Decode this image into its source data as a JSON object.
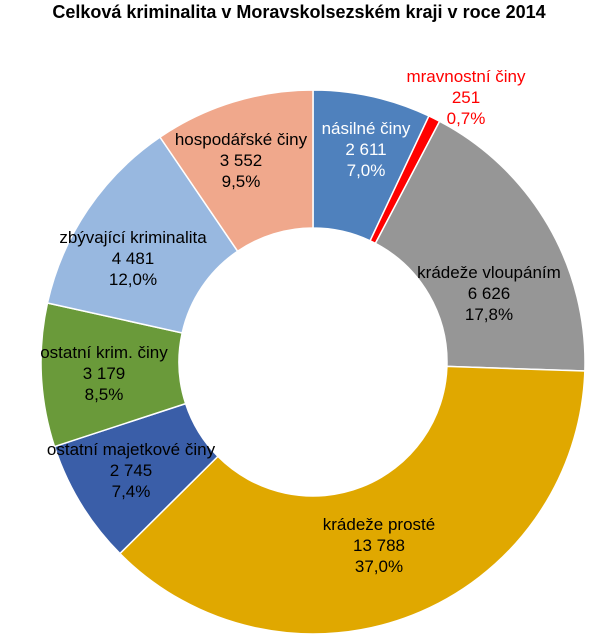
{
  "chart_data": {
    "type": "pie",
    "title": "Celková kriminalita v Moravskolsezském kraji v roce 2014",
    "slices": [
      {
        "label": "násilné činy",
        "value": "2 611",
        "percent": "7,0%",
        "share": 7.0,
        "color": "#4f81bd"
      },
      {
        "label": "mravnostní činy",
        "value": "251",
        "percent": "0,7%",
        "share": 0.7,
        "color": "#ff0000"
      },
      {
        "label": "krádeže vloupáním",
        "value": "6 626",
        "percent": "17,8%",
        "share": 17.8,
        "color": "#969696"
      },
      {
        "label": "krádeže  prosté",
        "value": "13 788",
        "percent": "37,0%",
        "share": 37.0,
        "color": "#e0a800"
      },
      {
        "label": "ostatní majetkové činy",
        "value": "2 745",
        "percent": "7,4%",
        "share": 7.4,
        "color": "#3a5ea8"
      },
      {
        "label": "ostatní krim. činy",
        "value": "3 179",
        "percent": "8,5%",
        "share": 8.5,
        "color": "#6a9a3a"
      },
      {
        "label": "zbývající kriminalita",
        "value": "4 481",
        "percent": "12,0%",
        "share": 12.0,
        "color": "#98b8e0"
      },
      {
        "label": "hospodářské činy",
        "value": "3 552",
        "percent": "9,5%",
        "share": 9.5,
        "color": "#f0a88c"
      }
    ],
    "label_color_special": "#ff0000"
  }
}
